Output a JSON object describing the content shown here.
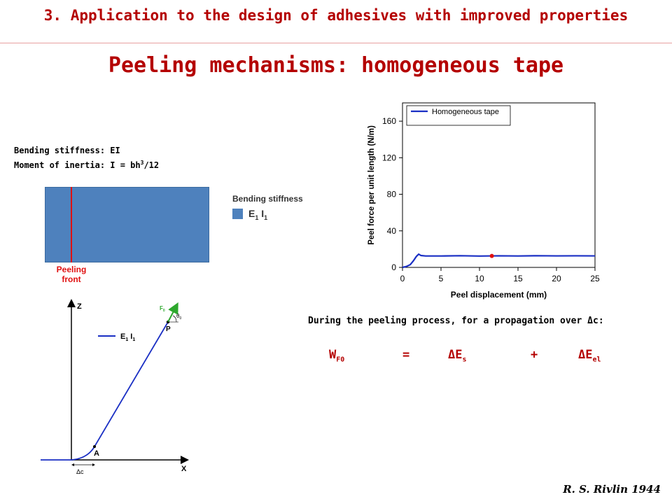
{
  "header": {
    "title": "3. Application to the design of adhesives with improved properties"
  },
  "slide": {
    "title": "Peeling mechanisms: homogeneous tape",
    "bending_stiffness_line": "Bending stiffness: EI",
    "moment_prefix": "Moment of inertia: I = bh",
    "moment_exp": "3",
    "moment_suffix": "/12"
  },
  "tape_diagram": {
    "peel_label": "Peeling\nfront",
    "legend_title": "Bending stiffness",
    "legend_E": "E",
    "legend_E_sub": "1",
    "legend_I": " I",
    "legend_I_sub": "1",
    "fill_color": "#4e81bd",
    "front_color": "#e01010"
  },
  "geometry_diagram": {
    "axis_z": "Z",
    "axis_x": "X",
    "legend_E": "E",
    "legend_E_sub": "1",
    "legend_I": " I",
    "legend_I_sub": "1",
    "point_A": "A",
    "point_P": "P",
    "force_label": "F",
    "force_sub": "0",
    "angle_label": "θ",
    "angle_sub": "0",
    "delta_c": "Δc",
    "curve_color": "#1a2fc4",
    "force_color": "#2da82d"
  },
  "text": {
    "process_line": "During the peeling process, for a propagation over Δc:",
    "eq_W": "W",
    "eq_W_sub": "F0",
    "eq_equals": "=",
    "eq_dEs": "ΔE",
    "eq_dEs_sub": "s",
    "eq_plus": "+",
    "eq_dEel": "ΔE",
    "eq_dEel_sub": "el"
  },
  "citation": "R. S. Rivlin 1944",
  "chart_data": {
    "type": "line",
    "title": "",
    "xlabel": "Peel displacement (mm)",
    "ylabel": "Peel force per unit length (N/m)",
    "xlim": [
      0,
      25
    ],
    "ylim": [
      0,
      180
    ],
    "xticks": [
      0,
      5,
      10,
      15,
      20,
      25
    ],
    "yticks": [
      0,
      40,
      80,
      120,
      160
    ],
    "legend_position": "top-left",
    "grid": false,
    "series": [
      {
        "name": "Homogeneous tape",
        "color": "#1a2fc4",
        "x": [
          0,
          0.5,
          1.0,
          1.4,
          1.8,
          2.1,
          2.4,
          3,
          5,
          7.5,
          10,
          12.5,
          15,
          17.5,
          20,
          22.5,
          25
        ],
        "y": [
          0,
          1,
          3,
          7,
          12,
          14.5,
          13,
          12.5,
          12.5,
          12.8,
          12.4,
          12.7,
          12.5,
          12.8,
          12.6,
          12.7,
          12.6
        ]
      }
    ],
    "marker": {
      "x": 11.6,
      "y": 12.5,
      "color": "#e01010"
    }
  }
}
